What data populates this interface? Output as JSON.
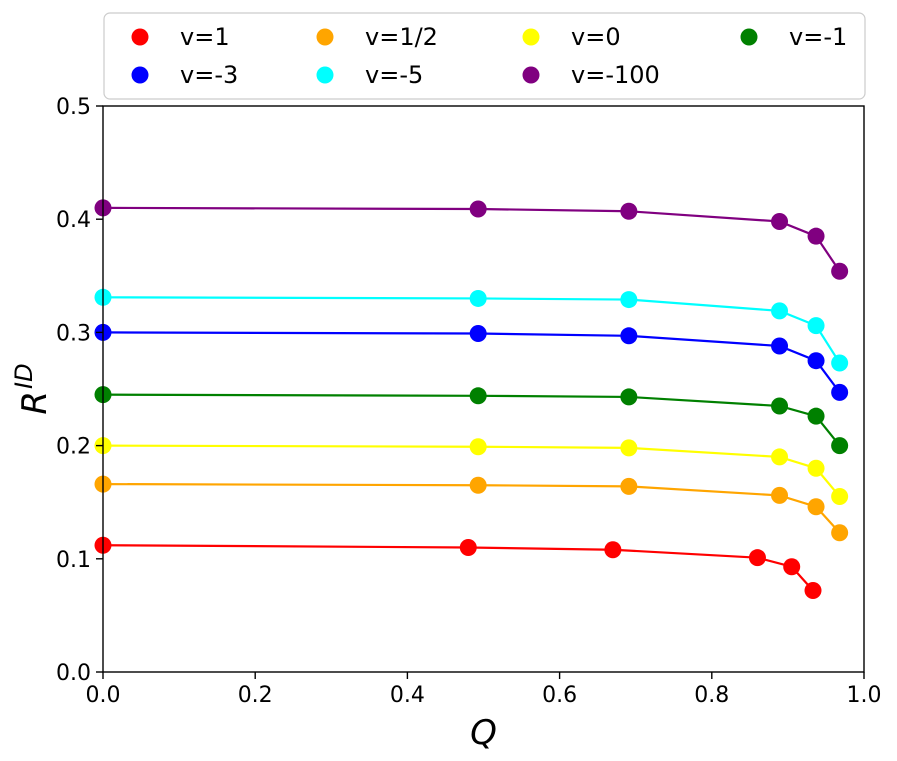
{
  "chart_data": {
    "type": "line",
    "title": "",
    "xlabel": "Q",
    "ylabel_base": "R",
    "ylabel_sup": "ID",
    "xlim": [
      0.0,
      1.0
    ],
    "ylim": [
      0.0,
      0.5
    ],
    "xticks": [
      0.0,
      0.2,
      0.4,
      0.6,
      0.8,
      1.0
    ],
    "xtick_labels": [
      "0.0",
      "0.2",
      "0.4",
      "0.6",
      "0.8",
      "1.0"
    ],
    "yticks": [
      0.0,
      0.1,
      0.2,
      0.3,
      0.4,
      0.5
    ],
    "ytick_labels": [
      "0.0",
      "0.1",
      "0.2",
      "0.3",
      "0.4",
      "0.5"
    ],
    "grid": false,
    "legend": {
      "placement": "top",
      "columns": 4
    },
    "series": [
      {
        "name": "v=1",
        "color": "#ff0000",
        "x": [
          0.0,
          0.48,
          0.67,
          0.86,
          0.905,
          0.933
        ],
        "y": [
          0.112,
          0.11,
          0.108,
          0.101,
          0.093,
          0.072
        ]
      },
      {
        "name": "v=1/2",
        "color": "#ffa500",
        "x": [
          0.0,
          0.493,
          0.691,
          0.889,
          0.937,
          0.968
        ],
        "y": [
          0.166,
          0.165,
          0.164,
          0.156,
          0.146,
          0.123
        ]
      },
      {
        "name": "v=0",
        "color": "#ffff00",
        "x": [
          0.0,
          0.493,
          0.691,
          0.889,
          0.937,
          0.968
        ],
        "y": [
          0.2,
          0.199,
          0.198,
          0.19,
          0.18,
          0.155
        ]
      },
      {
        "name": "v=-1",
        "color": "#008000",
        "x": [
          0.0,
          0.493,
          0.691,
          0.889,
          0.937,
          0.968
        ],
        "y": [
          0.245,
          0.244,
          0.243,
          0.235,
          0.226,
          0.2
        ]
      },
      {
        "name": "v=-3",
        "color": "#0000ff",
        "x": [
          0.0,
          0.493,
          0.691,
          0.889,
          0.937,
          0.968
        ],
        "y": [
          0.3,
          0.299,
          0.297,
          0.288,
          0.275,
          0.247
        ]
      },
      {
        "name": "v=-5",
        "color": "#00ffff",
        "x": [
          0.0,
          0.493,
          0.691,
          0.889,
          0.937,
          0.968
        ],
        "y": [
          0.331,
          0.33,
          0.329,
          0.319,
          0.306,
          0.273
        ]
      },
      {
        "name": "v=-100",
        "color": "#800080",
        "x": [
          0.0,
          0.493,
          0.691,
          0.889,
          0.937,
          0.968
        ],
        "y": [
          0.41,
          0.409,
          0.407,
          0.398,
          0.385,
          0.354
        ]
      }
    ]
  }
}
